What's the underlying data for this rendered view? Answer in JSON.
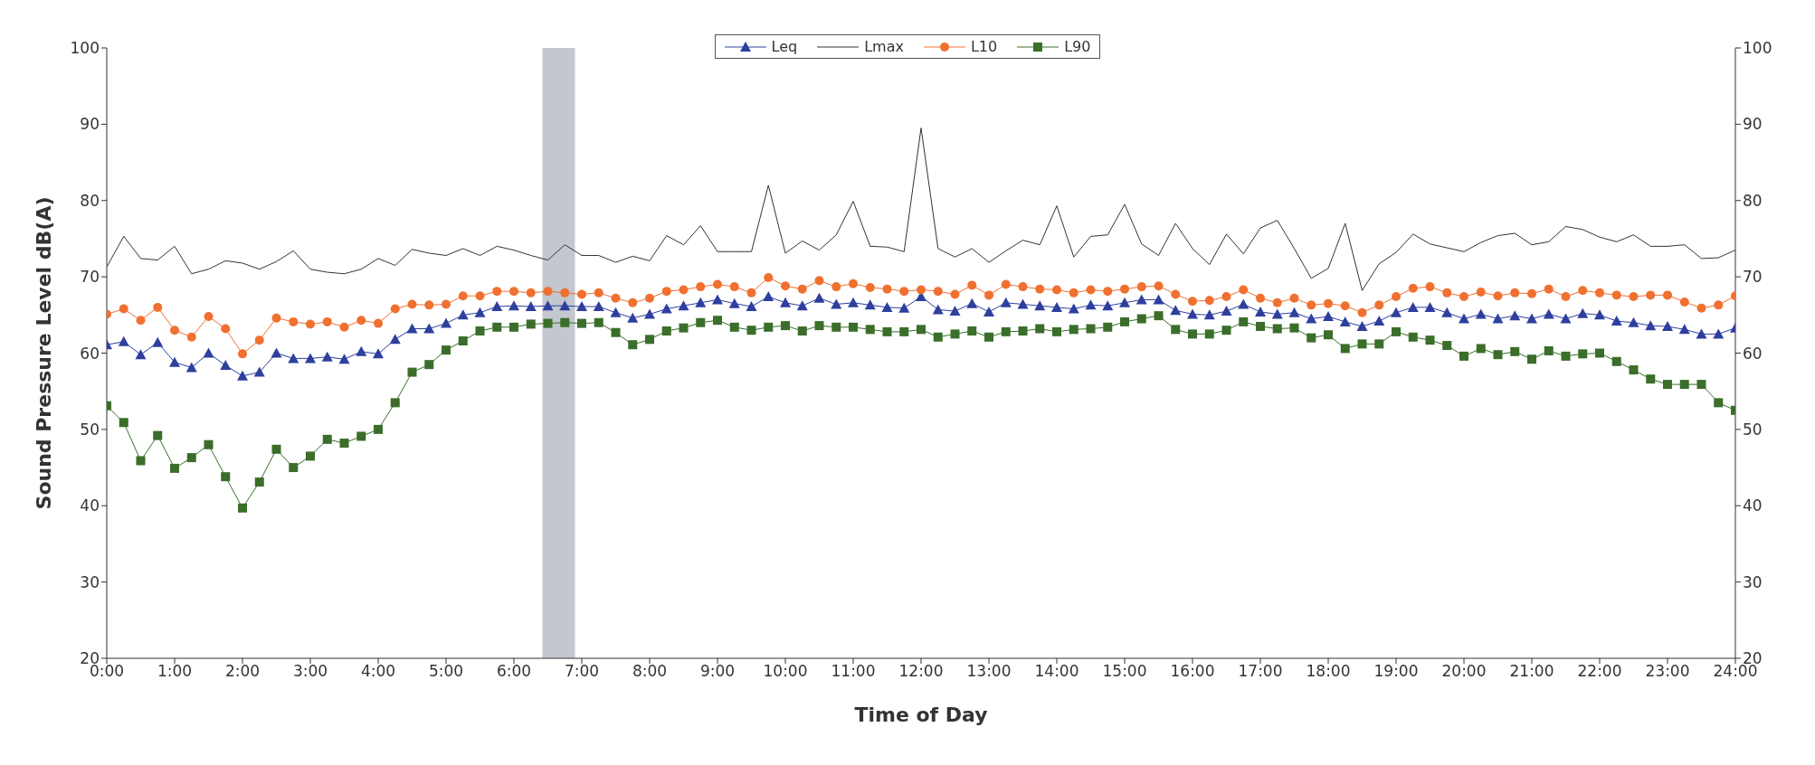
{
  "chart_data": {
    "type": "line",
    "xlabel": "Time of Day",
    "ylabel": "Sound Pressure Level dB(A)",
    "x": [
      0,
      0.25,
      0.5,
      0.75,
      1,
      1.25,
      1.5,
      1.75,
      2,
      2.25,
      2.5,
      2.75,
      3,
      3.25,
      3.5,
      3.75,
      4,
      4.25,
      4.5,
      4.75,
      5,
      5.25,
      5.5,
      5.75,
      6,
      6.25,
      6.5,
      6.75,
      7,
      7.25,
      7.5,
      7.75,
      8,
      8.25,
      8.5,
      8.75,
      9,
      9.25,
      9.5,
      9.75,
      10,
      10.25,
      10.5,
      10.75,
      11,
      11.25,
      11.5,
      11.75,
      12,
      12.25,
      12.5,
      12.75,
      13,
      13.25,
      13.5,
      13.75,
      14,
      14.25,
      14.5,
      14.75,
      15,
      15.25,
      15.5,
      15.75,
      16,
      16.25,
      16.5,
      16.75,
      17,
      17.25,
      17.5,
      17.75,
      18,
      18.25,
      18.5,
      18.75,
      19,
      19.25,
      19.5,
      19.75,
      20,
      20.25,
      20.5,
      20.75,
      21,
      21.25,
      21.5,
      21.75,
      22,
      22.25,
      22.5,
      22.75,
      23,
      23.25,
      23.5,
      23.75,
      24
    ],
    "series": [
      {
        "name": "Leq",
        "color": "#2e3f9e",
        "marker": "triangle",
        "values": [
          61.1,
          61.5,
          59.8,
          61.4,
          58.8,
          58.1,
          60.0,
          58.4,
          57.0,
          57.5,
          60.0,
          59.3,
          59.3,
          59.5,
          59.2,
          60.2,
          59.9,
          61.8,
          63.2,
          63.2,
          63.9,
          65.0,
          65.3,
          66.1,
          66.2,
          66.1,
          66.2,
          66.2,
          66.1,
          66.1,
          65.3,
          64.6,
          65.1,
          65.8,
          66.2,
          66.6,
          67.0,
          66.5,
          66.1,
          67.4,
          66.6,
          66.2,
          67.2,
          66.4,
          66.6,
          66.3,
          66.0,
          65.9,
          67.4,
          65.7,
          65.5,
          66.5,
          65.4,
          66.6,
          66.4,
          66.2,
          66.0,
          65.8,
          66.3,
          66.2,
          66.6,
          67.0,
          67.0,
          65.6,
          65.1,
          65.0,
          65.5,
          66.4,
          65.4,
          65.1,
          65.3,
          64.5,
          64.8,
          64.1,
          63.5,
          64.2,
          65.3,
          66.0,
          66.0,
          65.3,
          64.5,
          65.1,
          64.5,
          64.9,
          64.5,
          65.1,
          64.5,
          65.2,
          65.0,
          64.2,
          64.0,
          63.6,
          63.5,
          63.1,
          62.5,
          62.5,
          63.3
        ]
      },
      {
        "name": "Lmax",
        "color": "#333333",
        "marker": "none",
        "values": [
          71.3,
          75.3,
          72.4,
          72.2,
          74.0,
          70.4,
          71.0,
          72.1,
          71.8,
          71.0,
          72.0,
          73.4,
          71.0,
          70.6,
          70.4,
          71.0,
          72.4,
          71.5,
          73.6,
          73.1,
          72.8,
          73.7,
          72.8,
          74.0,
          73.5,
          72.8,
          72.2,
          74.2,
          72.8,
          72.8,
          71.9,
          72.7,
          72.1,
          75.4,
          74.2,
          76.7,
          73.3,
          73.3,
          73.3,
          82.0,
          73.1,
          74.7,
          73.5,
          75.5,
          79.9,
          74.0,
          73.9,
          73.3,
          89.5,
          73.7,
          72.6,
          73.7,
          71.9,
          73.4,
          74.8,
          74.2,
          79.3,
          72.6,
          75.3,
          75.5,
          79.5,
          74.3,
          72.8,
          77.0,
          73.7,
          71.6,
          75.6,
          73.0,
          76.4,
          77.4,
          73.7,
          69.8,
          71.1,
          77.0,
          68.2,
          71.7,
          73.2,
          75.6,
          74.3,
          73.8,
          73.3,
          74.5,
          75.4,
          75.7,
          74.2,
          74.6,
          76.6,
          76.2,
          75.2,
          74.6,
          75.5,
          74.0,
          74.0,
          74.2,
          72.4,
          72.5,
          73.5
        ]
      },
      {
        "name": "L10",
        "color": "#f07030",
        "marker": "circle",
        "values": [
          65.1,
          65.8,
          64.3,
          66.0,
          63.0,
          62.1,
          64.8,
          63.2,
          59.9,
          61.7,
          64.6,
          64.1,
          63.8,
          64.1,
          63.4,
          64.3,
          63.9,
          65.8,
          66.4,
          66.3,
          66.4,
          67.5,
          67.5,
          68.1,
          68.1,
          67.9,
          68.1,
          67.9,
          67.7,
          67.9,
          67.2,
          66.6,
          67.2,
          68.1,
          68.3,
          68.7,
          69.0,
          68.7,
          67.9,
          69.9,
          68.8,
          68.4,
          69.5,
          68.7,
          69.1,
          68.6,
          68.4,
          68.1,
          68.3,
          68.1,
          67.7,
          68.9,
          67.6,
          69.0,
          68.7,
          68.4,
          68.3,
          67.9,
          68.3,
          68.1,
          68.4,
          68.7,
          68.8,
          67.7,
          66.8,
          66.9,
          67.4,
          68.3,
          67.2,
          66.6,
          67.2,
          66.3,
          66.5,
          66.2,
          65.3,
          66.3,
          67.4,
          68.5,
          68.7,
          67.9,
          67.4,
          68.0,
          67.5,
          67.9,
          67.8,
          68.4,
          67.4,
          68.2,
          67.9,
          67.6,
          67.4,
          67.6,
          67.6,
          66.7,
          65.9,
          66.3,
          67.5
        ]
      },
      {
        "name": "L90",
        "color": "#3a6e2a",
        "marker": "square",
        "values": [
          53.1,
          50.9,
          45.9,
          49.2,
          44.9,
          46.3,
          48.0,
          43.8,
          39.7,
          43.1,
          47.4,
          45.0,
          46.5,
          48.7,
          48.2,
          49.1,
          50.0,
          53.5,
          57.5,
          58.5,
          60.4,
          61.6,
          62.9,
          63.4,
          63.4,
          63.8,
          63.9,
          64.0,
          63.9,
          64.0,
          62.7,
          61.1,
          61.8,
          62.9,
          63.3,
          64.0,
          64.3,
          63.4,
          63.0,
          63.4,
          63.6,
          62.9,
          63.6,
          63.4,
          63.4,
          63.1,
          62.8,
          62.8,
          63.1,
          62.1,
          62.5,
          62.9,
          62.1,
          62.8,
          62.9,
          63.2,
          62.8,
          63.1,
          63.2,
          63.4,
          64.1,
          64.5,
          64.9,
          63.1,
          62.5,
          62.5,
          63.0,
          64.1,
          63.5,
          63.2,
          63.3,
          62.0,
          62.4,
          60.6,
          61.2,
          61.2,
          62.8,
          62.1,
          61.7,
          61.0,
          59.6,
          60.6,
          59.8,
          60.2,
          59.2,
          60.3,
          59.6,
          59.9,
          60.0,
          58.9,
          57.8,
          56.6,
          55.9,
          55.9,
          55.9,
          53.5,
          52.5
        ]
      }
    ],
    "xlim": [
      0,
      24
    ],
    "xticks": [
      {
        "value": 0,
        "label": "0:00"
      },
      {
        "value": 1,
        "label": "1:00"
      },
      {
        "value": 2,
        "label": "2:00"
      },
      {
        "value": 3,
        "label": "3:00"
      },
      {
        "value": 4,
        "label": "4:00"
      },
      {
        "value": 5,
        "label": "5:00"
      },
      {
        "value": 6,
        "label": "6:00"
      },
      {
        "value": 7,
        "label": "7:00"
      },
      {
        "value": 8,
        "label": "8:00"
      },
      {
        "value": 9,
        "label": "9:00"
      },
      {
        "value": 10,
        "label": "10:00"
      },
      {
        "value": 11,
        "label": "11:00"
      },
      {
        "value": 12,
        "label": "12:00"
      },
      {
        "value": 13,
        "label": "13:00"
      },
      {
        "value": 14,
        "label": "14:00"
      },
      {
        "value": 15,
        "label": "15:00"
      },
      {
        "value": 16,
        "label": "16:00"
      },
      {
        "value": 17,
        "label": "17:00"
      },
      {
        "value": 18,
        "label": "18:00"
      },
      {
        "value": 19,
        "label": "19:00"
      },
      {
        "value": 20,
        "label": "20:00"
      },
      {
        "value": 21,
        "label": "21:00"
      },
      {
        "value": 22,
        "label": "22:00"
      },
      {
        "value": 23,
        "label": "23:00"
      },
      {
        "value": 24,
        "label": "24:00"
      }
    ],
    "ylim": [
      20,
      100
    ],
    "yticks": [
      20,
      30,
      40,
      50,
      60,
      70,
      80,
      90,
      100
    ],
    "y2lim": [
      20,
      100
    ],
    "y2ticks": [
      20,
      30,
      40,
      50,
      60,
      70,
      80,
      90,
      100
    ],
    "bands": [
      {
        "axis": "x",
        "from": 6.42,
        "to": 6.9,
        "color": "#c3c7cf"
      }
    ],
    "legend": "top"
  }
}
